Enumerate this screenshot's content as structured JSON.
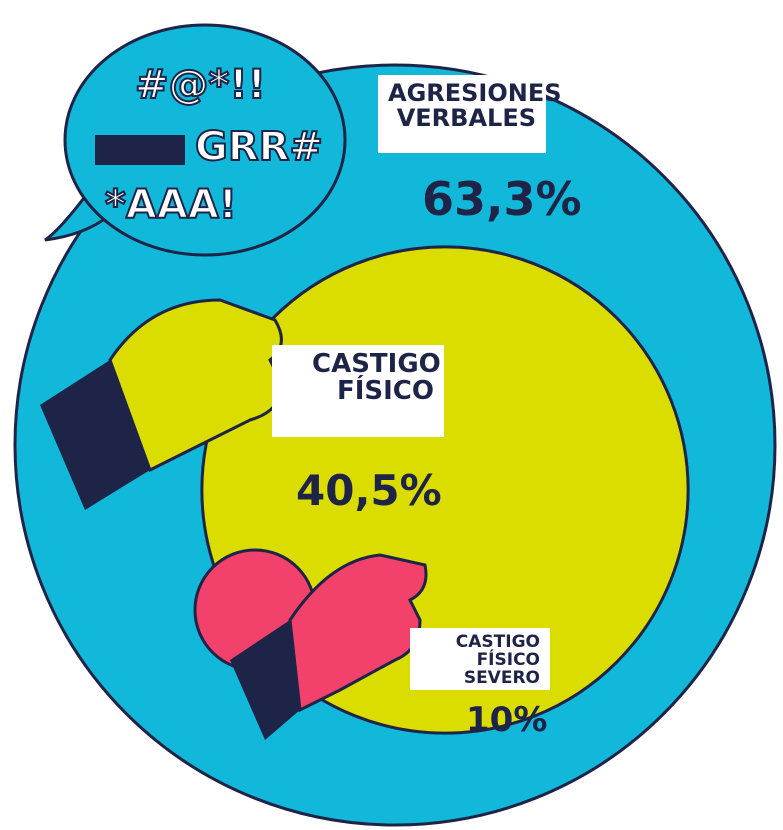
{
  "chart_data": {
    "type": "nested-circles",
    "categories": [
      "AGRESIONES VERBALES",
      "CASTIGO FÍSICO",
      "CASTIGO FÍSICO SEVERO"
    ],
    "values": [
      63.3,
      40.5,
      10
    ],
    "value_labels": [
      "63,3%",
      "40,5%",
      "10%"
    ],
    "colors": [
      "#12b8d9",
      "#dbdc00",
      "#f2426c"
    ],
    "annotations": [
      "#@*!!",
      "GRR#",
      "*AAA!"
    ]
  }
}
